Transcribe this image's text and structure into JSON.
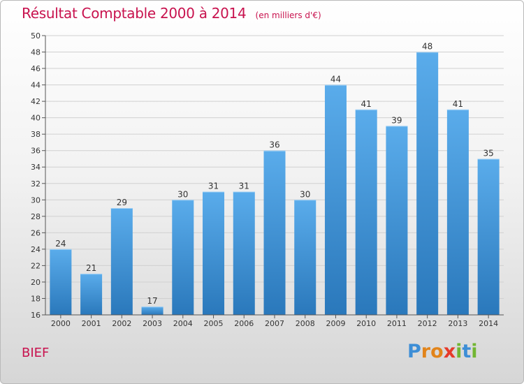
{
  "chart_data": {
    "type": "bar",
    "title": "Résultat Comptable 2000 à 2014",
    "subtitle": "(en milliers d'€)",
    "categories": [
      "2000",
      "2001",
      "2002",
      "2003",
      "2004",
      "2005",
      "2006",
      "2007",
      "2008",
      "2009",
      "2010",
      "2011",
      "2012",
      "2013",
      "2014"
    ],
    "values": [
      24,
      21,
      29,
      17,
      30,
      31,
      31,
      36,
      30,
      44,
      41,
      39,
      48,
      41,
      35
    ],
    "ylim": [
      16,
      50
    ],
    "yticks": [
      16,
      18,
      20,
      22,
      24,
      26,
      28,
      30,
      32,
      34,
      36,
      38,
      40,
      42,
      44,
      46,
      48,
      50
    ],
    "grid": true,
    "bar_color_top": "#5aaceb",
    "bar_color_bottom": "#2a78bb"
  },
  "footer": {
    "commune": "BIEF",
    "logo": [
      "P",
      "r",
      "o",
      "x",
      "i",
      "t",
      "i"
    ],
    "logo_colors": [
      "#3d8ed6",
      "#e2841a",
      "#e2841a",
      "#e63a2a",
      "#72b632",
      "#3d8ed6",
      "#72b632"
    ]
  }
}
